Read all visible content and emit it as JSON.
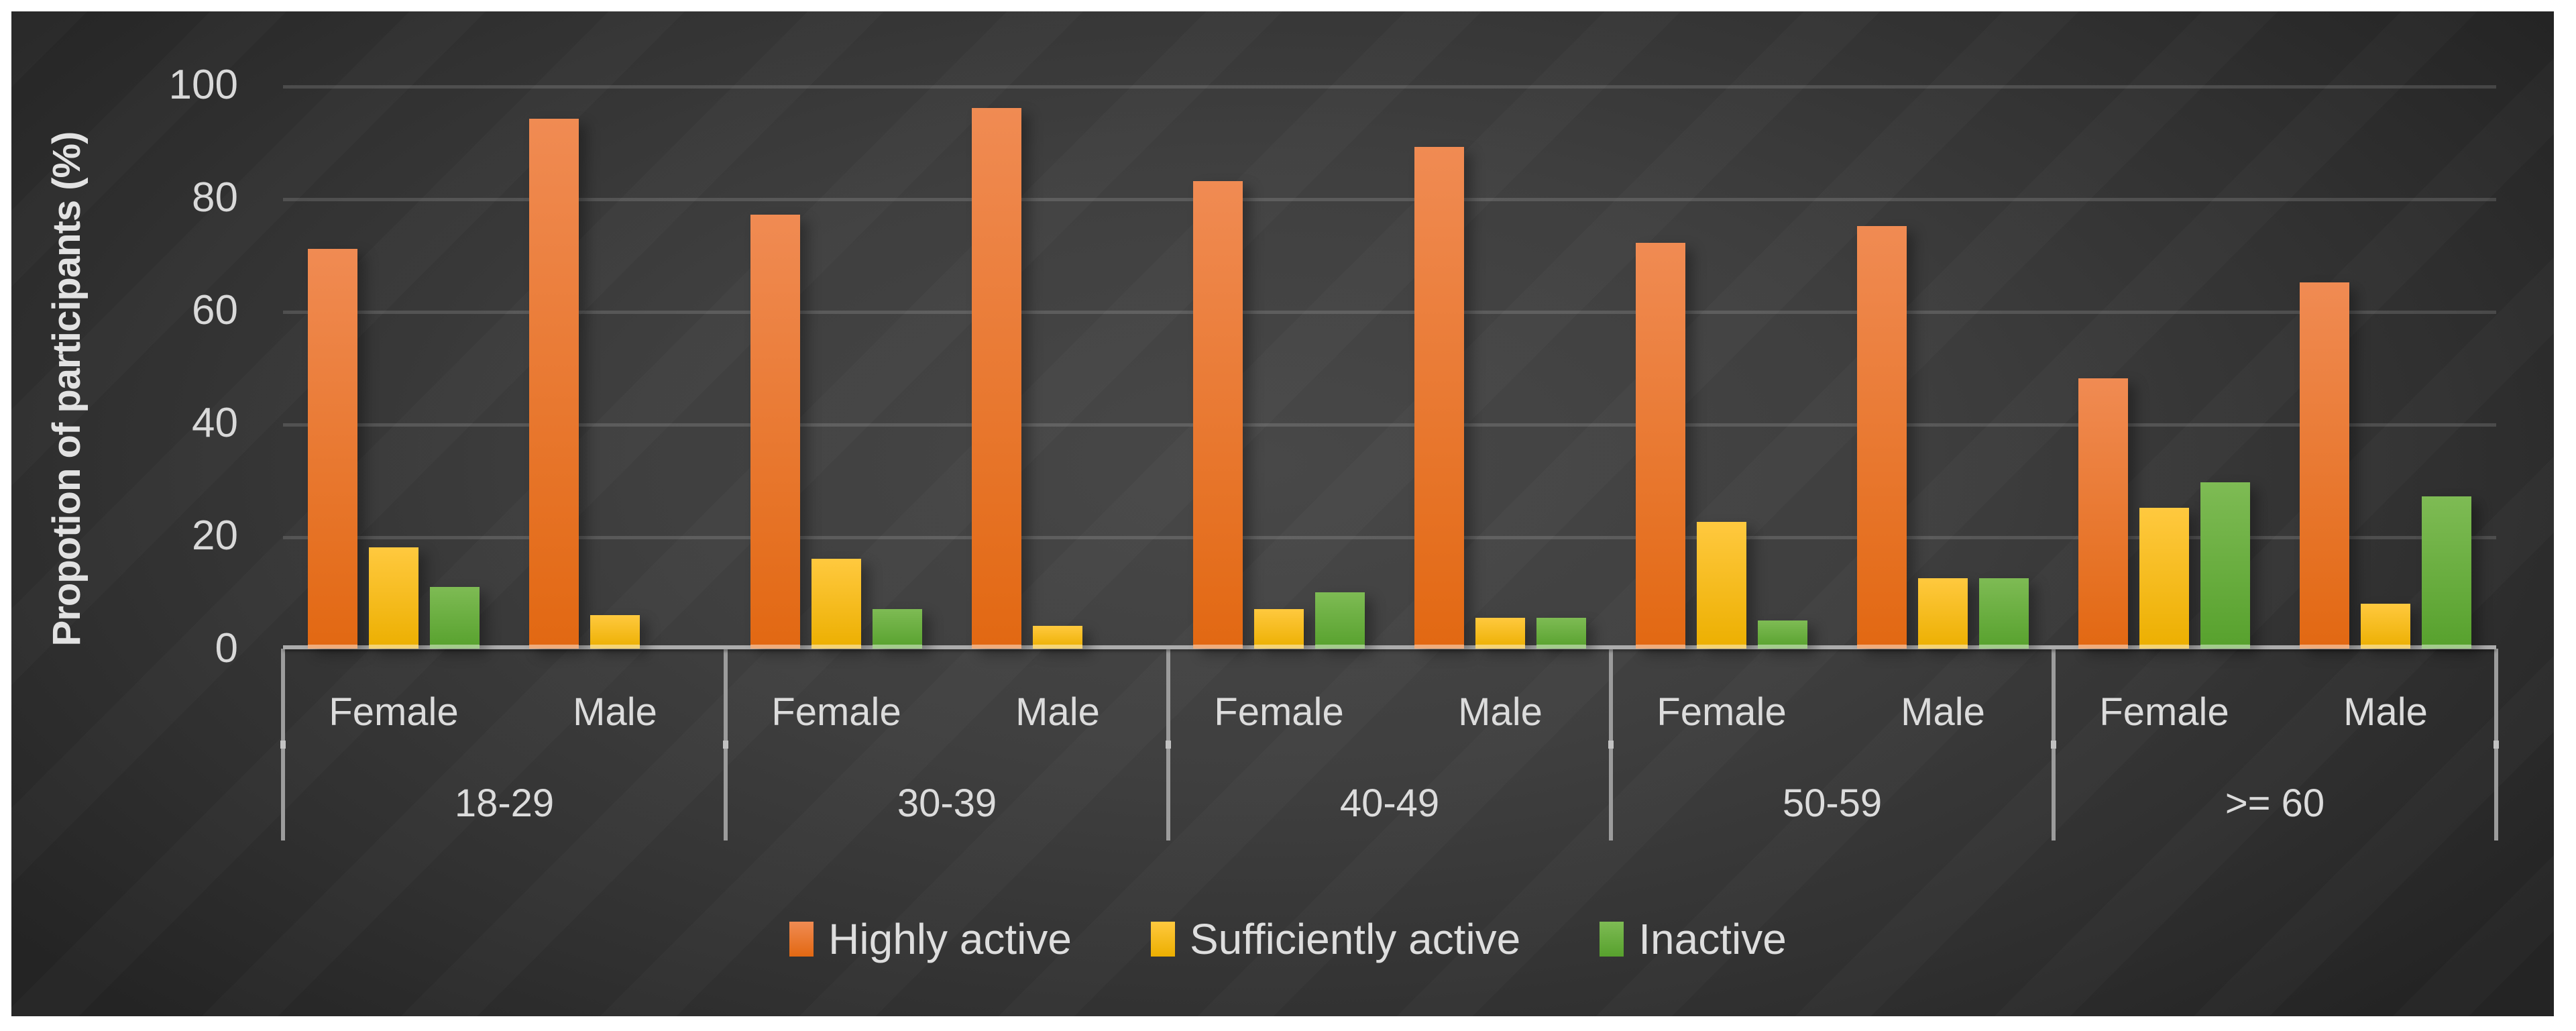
{
  "background": "#3b3b3b",
  "page_background": "#ffffff",
  "chart_data": {
    "type": "bar",
    "title": "",
    "ylabel": "Propotion of participants (%)",
    "xlabel": "",
    "ylim": [
      0,
      100
    ],
    "yticks": [
      100,
      80,
      60,
      40,
      20,
      0
    ],
    "grid": true,
    "legend_position": "bottom",
    "age_groups": [
      "18-29",
      "30-39",
      "40-49",
      "50-59",
      ">= 60"
    ],
    "genders": [
      "Female",
      "Male"
    ],
    "series": [
      {
        "name": "Highly active",
        "color": "#ED7D31",
        "gradient_top": "#F08B53",
        "gradient_bottom": "#E26812",
        "values": {
          "18-29": {
            "Female": 71,
            "Male": 94
          },
          "30-39": {
            "Female": 77,
            "Male": 96
          },
          "40-49": {
            "Female": 83,
            "Male": 89
          },
          "50-59": {
            "Female": 72,
            "Male": 75
          },
          ">= 60": {
            "Female": 48,
            "Male": 65
          }
        }
      },
      {
        "name": "Sufficiently active",
        "color": "#FFC000",
        "gradient_top": "#FFC93F",
        "gradient_bottom": "#ECAF00",
        "values": {
          "18-29": {
            "Female": 18,
            "Male": 6
          },
          "30-39": {
            "Female": 16,
            "Male": 4
          },
          "40-49": {
            "Female": 7,
            "Male": 5.5
          },
          "50-59": {
            "Female": 22.5,
            "Male": 12.5
          },
          ">= 60": {
            "Female": 25,
            "Male": 8
          }
        }
      },
      {
        "name": "Inactive",
        "color": "#70AD47",
        "gradient_top": "#7EBB54",
        "gradient_bottom": "#57A12D",
        "values": {
          "18-29": {
            "Female": 11,
            "Male": 0
          },
          "30-39": {
            "Female": 7,
            "Male": 0
          },
          "40-49": {
            "Female": 10,
            "Male": 5.5
          },
          "50-59": {
            "Female": 5,
            "Male": 12.5
          },
          ">= 60": {
            "Female": 29.5,
            "Male": 27
          }
        }
      }
    ]
  },
  "legend": {
    "items": [
      {
        "label": "Highly active",
        "color": "#ED7D31"
      },
      {
        "label": "Sufficiently active",
        "color": "#FFC000"
      },
      {
        "label": "Inactive",
        "color": "#70AD47"
      }
    ]
  }
}
